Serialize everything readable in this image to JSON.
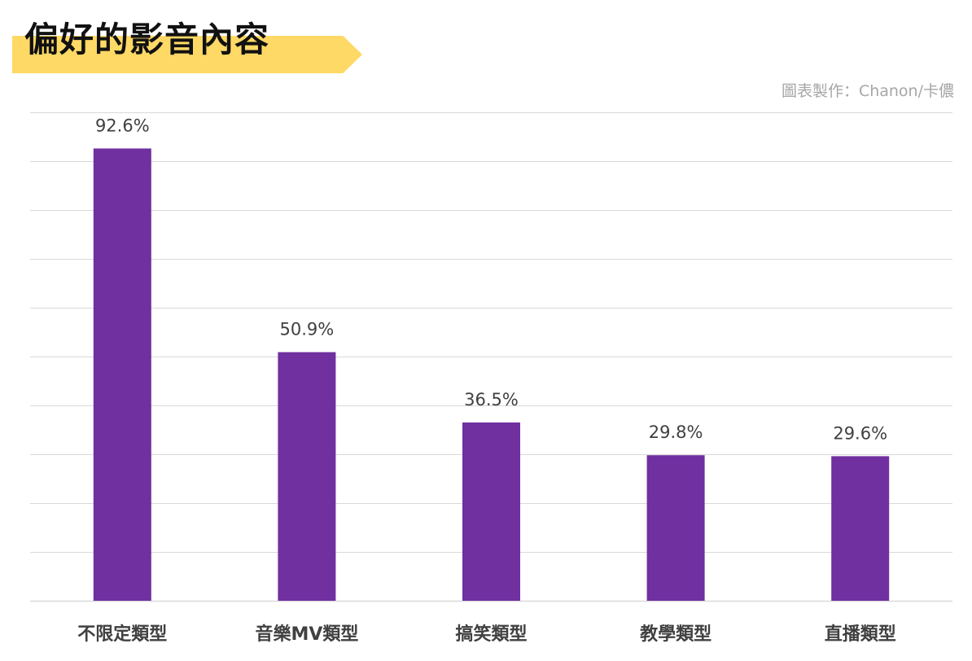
{
  "header": {
    "title": "偏好的影音內容",
    "credit": "圖表製作：Chanon/卡儂"
  },
  "colors": {
    "bar": "#7030a0",
    "banner": "#fed966",
    "grid": "#d9d9d9"
  },
  "chart_data": {
    "type": "bar",
    "categories": [
      "不限定類型",
      "音樂MV類型",
      "搞笑類型",
      "教學類型",
      "直播類型"
    ],
    "values": [
      92.6,
      50.9,
      36.5,
      29.8,
      29.6
    ],
    "value_labels": [
      "92.6%",
      "50.9%",
      "36.5%",
      "29.8%",
      "29.6%"
    ],
    "title": "偏好的影音內容",
    "xlabel": "",
    "ylabel": "",
    "ylim": [
      0,
      100
    ],
    "grid": true,
    "legend": "none"
  }
}
